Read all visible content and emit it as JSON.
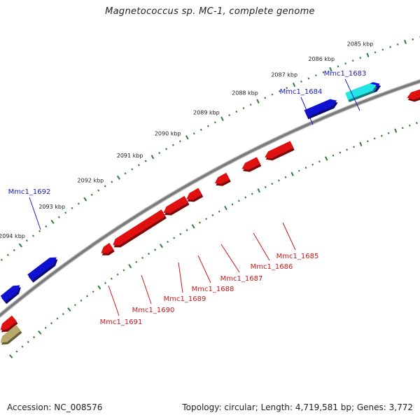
{
  "title": "Magnetococcus sp. MC-1, complete genome",
  "footer": {
    "accession": "Accession: NC_008576",
    "summary": "Topology: circular; Length: 4,719,581 bp; Genes: 3,772"
  },
  "colors": {
    "backbone": "#7a7a7a",
    "tick": "#2e7d32",
    "forward_gene": "#1010d0",
    "reverse_gene": "#e01010",
    "highlight_gene": "#22e6e6",
    "other_gene": "#b8a86a",
    "forward_label": "#1a1abf",
    "reverse_label": "#c81818"
  },
  "kbp_labels": [
    "2094 kbp",
    "2093 kbp",
    "2092 kbp",
    "2091 kbp",
    "2090 kbp",
    "2089 kbp",
    "2088 kbp",
    "2087 kbp",
    "2086 kbp",
    "2085 kbp"
  ],
  "forward_labels": [
    "Mmc1_1692",
    "Mmc1_1684",
    "Mmc1_1683"
  ],
  "reverse_labels": [
    "Mmc1_1691",
    "Mmc1_1690",
    "Mmc1_1689",
    "Mmc1_1688",
    "Mmc1_1687",
    "Mmc1_1686",
    "Mmc1_1685"
  ]
}
